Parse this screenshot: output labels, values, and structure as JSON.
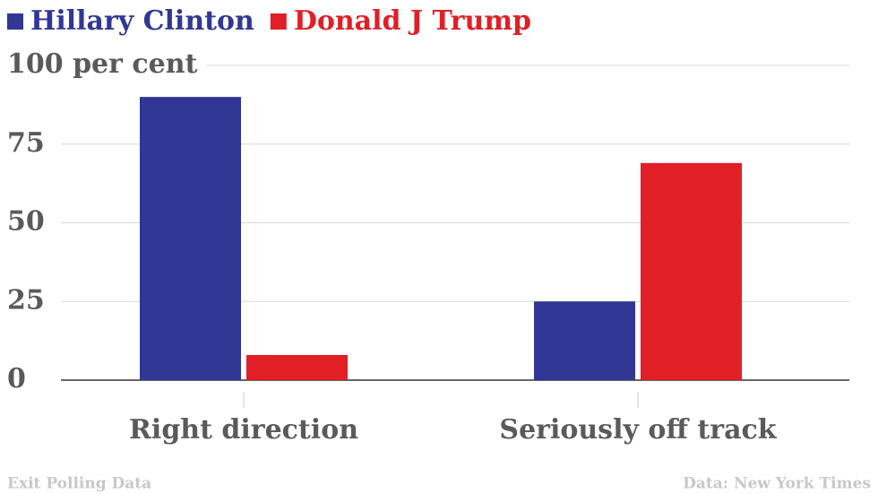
{
  "chart_data": {
    "type": "bar",
    "categories": [
      "Right direction",
      "Seriously off track"
    ],
    "series": [
      {
        "name": "Hillary Clinton",
        "color": "#303795",
        "values": [
          90,
          25
        ]
      },
      {
        "name": "Donald J Trump",
        "color": "#e01f26",
        "values": [
          8,
          69
        ]
      }
    ],
    "ylim": [
      0,
      100
    ],
    "yticks": [
      0,
      25,
      50,
      75,
      {
        "value": 100,
        "label": "100 per cent"
      }
    ],
    "grid": true,
    "legend": "top-left",
    "note": "Exit Polling Data",
    "source": "Data: New York Times"
  }
}
